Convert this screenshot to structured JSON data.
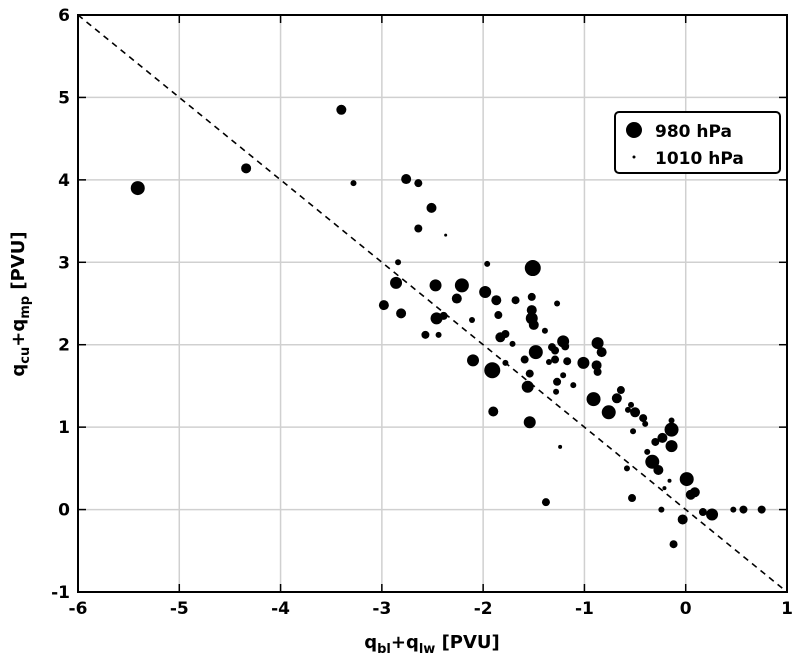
{
  "chart_data": {
    "type": "scatter",
    "title": "",
    "xlabel": {
      "main": "q",
      "sub1": "bl",
      "plus": "+q",
      "sub2": "lw",
      "unit": " [PVU]"
    },
    "ylabel": {
      "main": "q",
      "sub1": "cu",
      "plus": "+q",
      "sub2": "mp",
      "unit": " [PVU]"
    },
    "xlim": [
      -6,
      1
    ],
    "ylim": [
      -1,
      6
    ],
    "xticks": [
      -6,
      -5,
      -4,
      -3,
      -2,
      -1,
      0,
      1
    ],
    "yticks": [
      -1,
      0,
      1,
      2,
      3,
      4,
      5,
      6
    ],
    "grid": true,
    "reference_line": {
      "style": "dashed",
      "from": [
        -6,
        6
      ],
      "to": [
        1,
        -1
      ]
    },
    "legend": {
      "placement": "top-right",
      "entries": [
        {
          "label": "980 hPa",
          "marker_size": 8
        },
        {
          "label": "1010 hPa",
          "marker_size": 1.5
        }
      ]
    },
    "points_format": [
      "x",
      "y",
      "marker_size"
    ],
    "points": [
      [
        -5.41,
        3.9,
        7
      ],
      [
        -4.34,
        4.14,
        5
      ],
      [
        -3.4,
        4.85,
        5
      ],
      [
        -3.28,
        3.96,
        3
      ],
      [
        -2.76,
        4.01,
        5
      ],
      [
        -2.64,
        3.96,
        4
      ],
      [
        -2.51,
        3.66,
        5
      ],
      [
        -2.64,
        3.41,
        4
      ],
      [
        -2.37,
        3.33,
        1.5
      ],
      [
        -2.84,
        3.0,
        3
      ],
      [
        -2.86,
        2.75,
        6
      ],
      [
        -2.98,
        2.48,
        5
      ],
      [
        -2.81,
        2.38,
        5
      ],
      [
        -2.47,
        2.72,
        6
      ],
      [
        -2.21,
        2.72,
        7
      ],
      [
        -2.26,
        2.56,
        5
      ],
      [
        -2.39,
        2.35,
        4
      ],
      [
        -2.46,
        2.32,
        6
      ],
      [
        -2.57,
        2.12,
        4
      ],
      [
        -2.44,
        2.12,
        3
      ],
      [
        -2.11,
        2.3,
        3
      ],
      [
        -1.96,
        2.98,
        3
      ],
      [
        -1.98,
        2.64,
        6
      ],
      [
        -1.87,
        2.54,
        5
      ],
      [
        -1.51,
        2.93,
        8
      ],
      [
        -1.52,
        2.58,
        4
      ],
      [
        -1.52,
        2.42,
        5
      ],
      [
        -1.52,
        2.32,
        6
      ],
      [
        -1.5,
        2.24,
        5
      ],
      [
        -1.27,
        2.5,
        3
      ],
      [
        -1.68,
        2.54,
        4
      ],
      [
        -1.85,
        2.36,
        4
      ],
      [
        -1.83,
        2.09,
        5
      ],
      [
        -1.78,
        2.13,
        4
      ],
      [
        -1.71,
        2.01,
        3
      ],
      [
        -1.48,
        1.91,
        7
      ],
      [
        -1.32,
        1.97,
        4
      ],
      [
        -1.29,
        1.93,
        4
      ],
      [
        -1.21,
        2.04,
        6
      ],
      [
        -1.19,
        1.98,
        4
      ],
      [
        -1.35,
        1.79,
        3
      ],
      [
        -1.29,
        1.82,
        4
      ],
      [
        -1.17,
        1.8,
        4
      ],
      [
        -1.59,
        1.82,
        4
      ],
      [
        -2.1,
        1.81,
        6
      ],
      [
        -1.91,
        1.69,
        8
      ],
      [
        -1.78,
        1.78,
        3
      ],
      [
        -1.54,
        1.65,
        4
      ],
      [
        -1.56,
        1.49,
        6
      ],
      [
        -1.27,
        1.55,
        4
      ],
      [
        -1.21,
        1.63,
        3
      ],
      [
        -1.28,
        1.43,
        3
      ],
      [
        -1.11,
        1.51,
        3
      ],
      [
        -1.9,
        1.19,
        5
      ],
      [
        -1.54,
        1.06,
        6
      ],
      [
        -1.39,
        2.17,
        3
      ],
      [
        -0.87,
        2.02,
        6
      ],
      [
        -0.83,
        1.91,
        5
      ],
      [
        -1.01,
        1.78,
        6
      ],
      [
        -0.88,
        1.75,
        5
      ],
      [
        -0.87,
        1.67,
        4
      ],
      [
        -0.91,
        1.34,
        7
      ],
      [
        -0.76,
        1.18,
        7
      ],
      [
        -0.68,
        1.35,
        5
      ],
      [
        -0.64,
        1.45,
        4
      ],
      [
        -0.57,
        1.21,
        3
      ],
      [
        -0.54,
        1.27,
        3
      ],
      [
        -0.5,
        1.18,
        5
      ],
      [
        -0.42,
        1.11,
        4
      ],
      [
        -0.4,
        1.04,
        3
      ],
      [
        -0.52,
        0.95,
        3
      ],
      [
        -1.24,
        0.76,
        2
      ],
      [
        -1.38,
        0.09,
        4
      ],
      [
        -0.58,
        0.5,
        3
      ],
      [
        -0.53,
        0.14,
        4
      ],
      [
        -0.38,
        0.7,
        3
      ],
      [
        -0.33,
        0.58,
        7
      ],
      [
        -0.27,
        0.48,
        5
      ],
      [
        -0.3,
        0.82,
        4
      ],
      [
        -0.23,
        0.87,
        5
      ],
      [
        -0.14,
        1.08,
        3
      ],
      [
        -0.14,
        0.97,
        7
      ],
      [
        -0.14,
        0.77,
        6
      ],
      [
        -0.16,
        0.35,
        2
      ],
      [
        -0.21,
        0.26,
        2
      ],
      [
        0.01,
        0.37,
        7
      ],
      [
        0.05,
        0.18,
        5
      ],
      [
        0.09,
        0.21,
        5
      ],
      [
        -0.24,
        0.0,
        3
      ],
      [
        -0.03,
        -0.12,
        5
      ],
      [
        -0.12,
        -0.42,
        4
      ],
      [
        0.17,
        -0.03,
        4
      ],
      [
        0.26,
        -0.06,
        6
      ],
      [
        0.47,
        0.0,
        3
      ],
      [
        0.57,
        0.0,
        4
      ],
      [
        0.75,
        0.0,
        4
      ]
    ]
  }
}
